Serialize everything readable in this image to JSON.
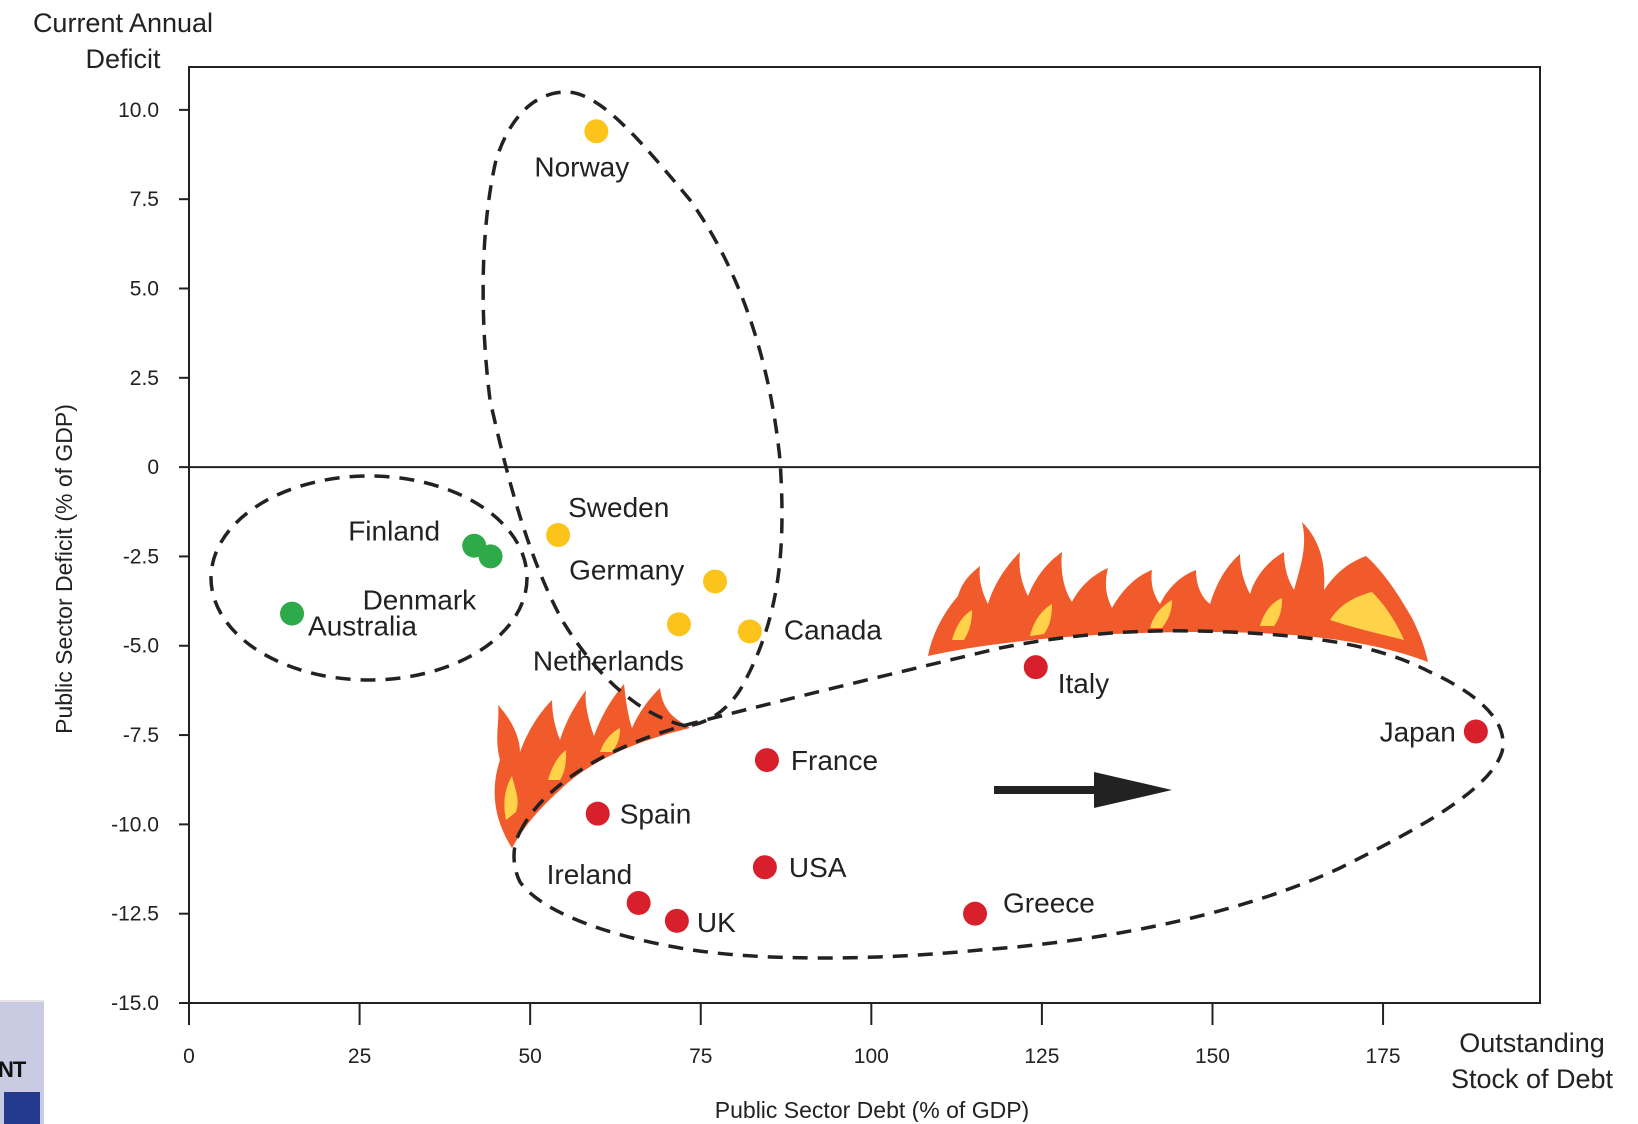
{
  "chart_data": {
    "type": "scatter",
    "xlabel": "Public Sector Debt (% of GDP)",
    "ylabel": "Public Sector Deficit (% of GDP)",
    "y_corner_label": [
      "Current Annual",
      "Deficit"
    ],
    "x_corner_label": [
      "Outstanding",
      "Stock of Debt"
    ],
    "xlim": [
      0,
      198
    ],
    "ylim": [
      -15,
      11.2
    ],
    "xticks": [
      0,
      25,
      50,
      75,
      100,
      125,
      150,
      175
    ],
    "xtick_labels": [
      "0",
      "25",
      "50",
      "75",
      "100",
      "125",
      "150",
      "175"
    ],
    "yticks": [
      10,
      7.5,
      5,
      2.5,
      0,
      -2.5,
      -5,
      -7.5,
      -10,
      -12.5,
      -15
    ],
    "ytick_labels": [
      "10.0",
      "7.5",
      "5.0",
      "2.5",
      "0",
      "-2.5",
      "-5.0",
      "-7.5",
      "-10.0",
      "-12.5",
      "-15.0"
    ],
    "reference_line_y": 0,
    "grid": false,
    "colors": {
      "green": "#2eaa4a",
      "yellow": "#fcc31a",
      "red": "#d7202b",
      "flame_orange": "#f15a2b",
      "flame_yellow": "#ffd24a"
    },
    "points": [
      {
        "label": "Norway",
        "x": 59.7,
        "y": 9.4,
        "color": "yellow"
      },
      {
        "label": "Sweden",
        "x": 54.1,
        "y": -1.9,
        "color": "yellow"
      },
      {
        "label": "Germany",
        "x": 77.1,
        "y": -3.2,
        "color": "yellow"
      },
      {
        "label": "Netherlands",
        "x": 71.8,
        "y": -4.4,
        "color": "yellow"
      },
      {
        "label": "Canada",
        "x": 82.2,
        "y": -4.6,
        "color": "yellow"
      },
      {
        "label": "Finland",
        "x": 41.8,
        "y": -2.2,
        "color": "green"
      },
      {
        "label": "Denmark",
        "x": 44.2,
        "y": -2.5,
        "color": "green"
      },
      {
        "label": "Australia",
        "x": 15.1,
        "y": -4.1,
        "color": "green"
      },
      {
        "label": "Italy",
        "x": 124.1,
        "y": -5.6,
        "color": "red"
      },
      {
        "label": "Japan",
        "x": 188.6,
        "y": -7.4,
        "color": "red"
      },
      {
        "label": "France",
        "x": 84.7,
        "y": -8.2,
        "color": "red"
      },
      {
        "label": "Spain",
        "x": 59.9,
        "y": -9.7,
        "color": "red"
      },
      {
        "label": "USA",
        "x": 84.4,
        "y": -11.2,
        "color": "red"
      },
      {
        "label": "Ireland",
        "x": 65.9,
        "y": -12.2,
        "color": "red"
      },
      {
        "label": "UK",
        "x": 71.5,
        "y": -12.7,
        "color": "red"
      },
      {
        "label": "Greece",
        "x": 115.2,
        "y": -12.5,
        "color": "red"
      }
    ]
  },
  "logo": {
    "text": "NT"
  }
}
